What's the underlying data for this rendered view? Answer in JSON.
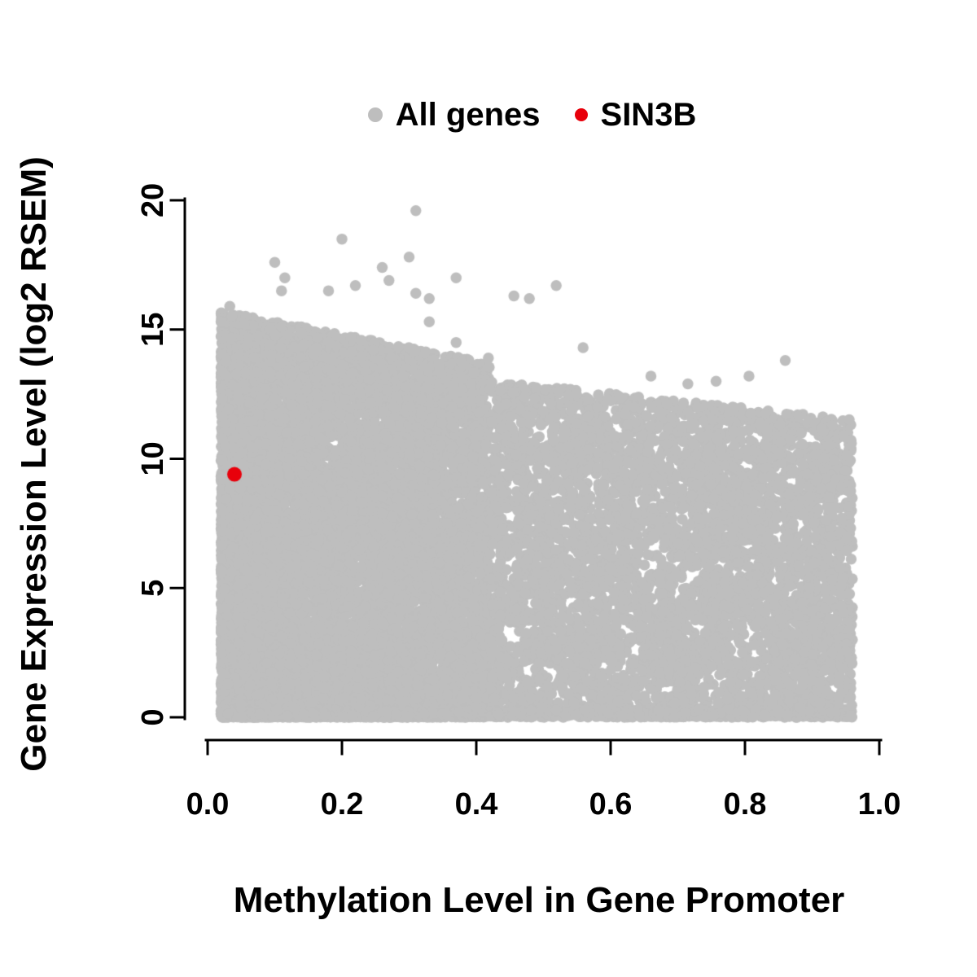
{
  "chart_data": {
    "type": "scatter",
    "title": "",
    "xlabel": "Methylation Level in Gene Promoter",
    "ylabel": "Gene Expression Level (log2 RSEM)",
    "xlim": [
      0.0,
      1.0
    ],
    "ylim": [
      0,
      20
    ],
    "x_ticks": [
      0.0,
      0.2,
      0.4,
      0.6,
      0.8,
      1.0
    ],
    "x_tick_labels": [
      "0.0",
      "0.2",
      "0.4",
      "0.6",
      "0.8",
      "1.0"
    ],
    "y_ticks": [
      0,
      5,
      10,
      15,
      20
    ],
    "y_tick_labels": [
      "0",
      "5",
      "10",
      "15",
      "20"
    ],
    "grid": false,
    "axis_color": "#000000",
    "legend": {
      "position": "top-center",
      "entries": [
        {
          "label": "All genes",
          "color": "#bebebe"
        },
        {
          "label": "SIN3B",
          "color": "#e8000b"
        }
      ]
    },
    "series": [
      {
        "name": "All genes",
        "color": "#bebebe",
        "marker_radius": 6.75,
        "cloud_spec": {
          "seed": 1337,
          "note": "dense cloud of ~15000 genes approximated by seeded random generation matching the visible envelope: upper bound ~15.8 at x=0 declining to ~11.5 at x=0.96, dense solid band for x<0.42, sparser textured cloud for x 0.42-0.96, dense row of points at y=0",
          "regions": [
            {
              "n": 10000,
              "x_min": 0.02,
              "x_max": 0.42,
              "x_pow": 1.3,
              "env_a": 15.8,
              "env_b": 5.0,
              "y_pow": 1.0,
              "zero_frac": 0.15
            },
            {
              "n": 5200,
              "x_min": 0.42,
              "x_max": 0.96,
              "x_pow": 1.0,
              "env_a": 14.2,
              "env_b": 2.8,
              "y_pow": 1.0,
              "zero_frac": 0.12
            }
          ]
        },
        "outliers": [
          [
            0.31,
            19.6
          ],
          [
            0.2,
            18.5
          ],
          [
            0.3,
            17.8
          ],
          [
            0.26,
            17.4
          ],
          [
            0.37,
            17.0
          ],
          [
            0.1,
            17.6
          ],
          [
            0.115,
            17.0
          ],
          [
            0.27,
            16.9
          ],
          [
            0.11,
            16.5
          ],
          [
            0.18,
            16.5
          ],
          [
            0.22,
            16.7
          ],
          [
            0.31,
            16.4
          ],
          [
            0.33,
            16.2
          ],
          [
            0.456,
            16.3
          ],
          [
            0.479,
            16.2
          ],
          [
            0.519,
            16.7
          ],
          [
            0.033,
            15.9
          ],
          [
            0.055,
            15.2
          ],
          [
            0.33,
            15.3
          ],
          [
            0.37,
            14.5
          ],
          [
            0.418,
            13.9
          ],
          [
            0.559,
            14.3
          ],
          [
            0.66,
            13.2
          ],
          [
            0.715,
            12.9
          ],
          [
            0.757,
            13.0
          ],
          [
            0.806,
            13.2
          ],
          [
            0.86,
            13.8
          ]
        ]
      },
      {
        "name": "SIN3B",
        "color": "#e8000b",
        "marker_radius": 9,
        "points": [
          [
            0.04,
            9.4
          ]
        ]
      }
    ]
  }
}
